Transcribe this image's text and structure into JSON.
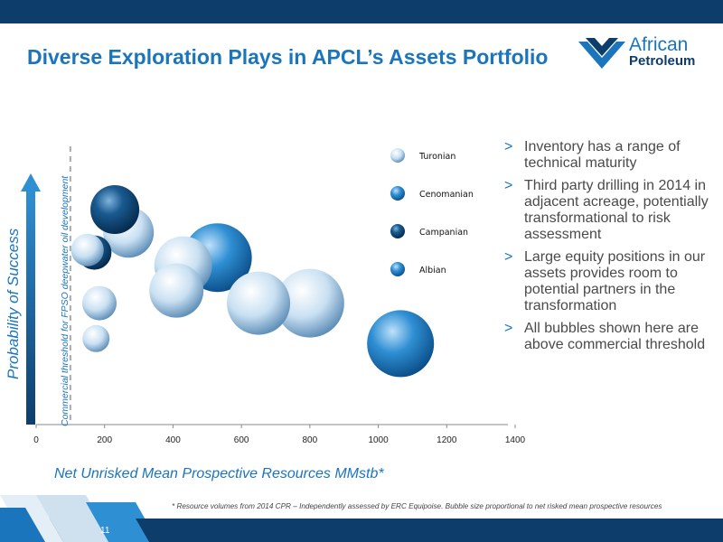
{
  "title": "Diverse Exploration Plays in APCL’s Assets Portfolio",
  "logo": {
    "line1": "African",
    "line2": "Petroleum"
  },
  "bullets": [
    {
      "marker": ">",
      "text": "Inventory has a range of technical maturity"
    },
    {
      "marker": ">",
      "text": "Third party drilling in 2014 in adjacent acreage, potentially transformational to risk assessment"
    },
    {
      "marker": ">",
      "text": "Large equity positions in our assets provides room to potential partners in the transformation"
    },
    {
      "marker": ">",
      "text": "All bubbles shown here are above commercial threshold"
    }
  ],
  "footnote": "* Resource volumes from 2014 CPR – Independently assessed by ERC Equipoise. Bubble size proportional to net risked mean prospective resources",
  "page_number": "11",
  "colors": {
    "title": "#1b75bc",
    "band": "#0d3d6b"
  },
  "chart_data": {
    "type": "scatter",
    "title": "",
    "xlabel": "Net Unrisked Mean Prospective Resources MMstb*",
    "ylabel": "Probability of Success",
    "xlim": [
      0,
      1400
    ],
    "x_ticks": [
      0,
      200,
      400,
      600,
      800,
      1000,
      1200,
      1400
    ],
    "y_ticks_shown": false,
    "threshold": {
      "x": 100,
      "label": "Commercial threshold for FPSO deepwater oil development"
    },
    "legend_position": "right",
    "series": [
      {
        "name": "Turonian",
        "color": "light",
        "points": [
          {
            "x": 270,
            "y": 0.76,
            "size": 28
          },
          {
            "x": 150,
            "y": 0.69,
            "size": 18
          },
          {
            "x": 185,
            "y": 0.48,
            "size": 19
          },
          {
            "x": 175,
            "y": 0.34,
            "size": 15
          },
          {
            "x": 410,
            "y": 0.53,
            "size": 30
          },
          {
            "x": 430,
            "y": 0.63,
            "size": 32
          },
          {
            "x": 650,
            "y": 0.48,
            "size": 35
          },
          {
            "x": 800,
            "y": 0.48,
            "size": 38
          }
        ]
      },
      {
        "name": "Cenomanian",
        "color": "mid",
        "points": [
          {
            "x": 530,
            "y": 0.66,
            "size": 38
          },
          {
            "x": 1065,
            "y": 0.32,
            "size": 37
          }
        ]
      },
      {
        "name": "Campanian",
        "color": "dark",
        "points": [
          {
            "x": 230,
            "y": 0.85,
            "size": 27
          },
          {
            "x": 170,
            "y": 0.68,
            "size": 19
          }
        ]
      },
      {
        "name": "Albian",
        "color": "mid",
        "points": []
      }
    ]
  }
}
